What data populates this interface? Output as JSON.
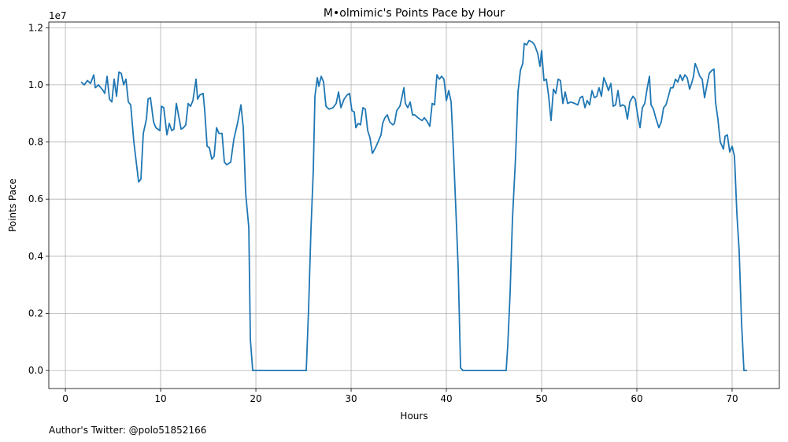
{
  "chart_data": {
    "type": "line",
    "title": "M•olmimic's Points Pace by Hour",
    "x_label": "Hours",
    "y_label": "Points Pace",
    "y_offset_label": "1e7",
    "footnote": "Author's Twitter: @polo51852166",
    "color": "#1f77b4",
    "grid": true,
    "xlim": [
      -1.74,
      74.96
    ],
    "ylim": [
      -0.063,
      1.22
    ],
    "xticks": [
      0,
      10,
      20,
      30,
      40,
      50,
      60,
      70
    ],
    "yticks": [
      {
        "value": 0,
        "label": "0.0"
      },
      0.2,
      0.4,
      0.6,
      0.8,
      {
        "value": 1,
        "label": "1.0"
      },
      1.2
    ],
    "x": [
      1.65,
      1.98,
      2.31,
      2.64,
      2.98,
      3.14,
      3.47,
      3.97,
      4.13,
      4.38,
      4.63,
      4.88,
      5.12,
      5.37,
      5.62,
      5.87,
      6.12,
      6.36,
      6.61,
      6.86,
      7.19,
      7.69,
      7.93,
      8.18,
      8.51,
      8.68,
      8.93,
      9.26,
      9.5,
      9.92,
      10.08,
      10.33,
      10.66,
      10.91,
      11.16,
      11.4,
      11.65,
      11.9,
      12.15,
      12.4,
      12.64,
      12.89,
      13.14,
      13.39,
      13.72,
      13.88,
      14.13,
      14.46,
      14.63,
      14.88,
      15.12,
      15.37,
      15.62,
      15.87,
      16.12,
      16.45,
      16.69,
      16.94,
      17.36,
      17.69,
      18.1,
      18.43,
      18.68,
      18.93,
      19.26,
      19.42,
      19.67,
      22,
      24,
      25.29,
      25.54,
      25.79,
      26.03,
      26.2,
      26.45,
      26.61,
      26.86,
      27.11,
      27.36,
      27.69,
      28.1,
      28.43,
      28.68,
      28.93,
      29.26,
      29.59,
      29.83,
      30.08,
      30.33,
      30.5,
      30.74,
      30.99,
      31.24,
      31.49,
      31.74,
      31.98,
      32.23,
      32.56,
      32.89,
      33.14,
      33.31,
      33.55,
      33.8,
      34.05,
      34.38,
      34.55,
      34.79,
      35.12,
      35.29,
      35.54,
      35.7,
      35.95,
      36.2,
      36.45,
      36.69,
      37.02,
      37.44,
      37.69,
      38.02,
      38.26,
      38.51,
      38.76,
      39.01,
      39.26,
      39.5,
      39.75,
      40,
      40.25,
      40.5,
      40.74,
      40.99,
      41.24,
      41.49,
      41.74,
      44,
      46.28,
      46.45,
      46.69,
      46.94,
      47.27,
      47.52,
      47.77,
      48.02,
      48.18,
      48.43,
      48.68,
      49.01,
      49.26,
      49.59,
      49.83,
      50,
      50.25,
      50.5,
      50.74,
      50.99,
      51.24,
      51.49,
      51.74,
      51.98,
      52.23,
      52.48,
      52.73,
      53.06,
      53.47,
      53.8,
      54.05,
      54.3,
      54.55,
      54.79,
      55.04,
      55.29,
      55.54,
      55.79,
      56.03,
      56.28,
      56.53,
      56.78,
      57.02,
      57.27,
      57.52,
      57.77,
      58.02,
      58.26,
      58.51,
      58.76,
      59.01,
      59.26,
      59.59,
      59.83,
      60.08,
      60.33,
      60.58,
      60.83,
      61.07,
      61.32,
      61.49,
      61.74,
      61.98,
      62.31,
      62.56,
      62.81,
      63.06,
      63.31,
      63.55,
      63.8,
      64.05,
      64.3,
      64.55,
      64.79,
      65.04,
      65.29,
      65.54,
      65.79,
      65.95,
      66.12,
      66.36,
      66.61,
      66.86,
      67.11,
      67.36,
      67.6,
      67.85,
      68.1,
      68.26,
      68.51,
      68.76,
      69.09,
      69.26,
      69.5,
      69.75,
      70,
      70.25,
      70.5,
      70.74,
      70.99,
      71.24,
      71.57
    ],
    "values": [
      1.01,
      1.0,
      1.015,
      1.005,
      1.035,
      0.99,
      1.0,
      0.98,
      0.97,
      1.03,
      0.95,
      0.94,
      1.02,
      0.96,
      1.045,
      1.04,
      1.0,
      1.02,
      0.94,
      0.93,
      0.8,
      0.66,
      0.67,
      0.83,
      0.88,
      0.95,
      0.955,
      0.87,
      0.85,
      0.84,
      0.925,
      0.92,
      0.825,
      0.865,
      0.84,
      0.845,
      0.935,
      0.89,
      0.845,
      0.85,
      0.86,
      0.935,
      0.925,
      0.945,
      1.02,
      0.95,
      0.965,
      0.97,
      0.91,
      0.785,
      0.78,
      0.74,
      0.75,
      0.85,
      0.83,
      0.83,
      0.73,
      0.72,
      0.73,
      0.81,
      0.87,
      0.93,
      0.85,
      0.62,
      0.5,
      0.11,
      0,
      0,
      0,
      0,
      0.22,
      0.5,
      0.7,
      0.96,
      1.025,
      0.995,
      1.03,
      1.01,
      0.925,
      0.915,
      0.92,
      0.935,
      0.975,
      0.92,
      0.95,
      0.965,
      0.97,
      0.91,
      0.905,
      0.85,
      0.865,
      0.86,
      0.92,
      0.915,
      0.84,
      0.815,
      0.76,
      0.78,
      0.805,
      0.825,
      0.865,
      0.885,
      0.895,
      0.87,
      0.86,
      0.865,
      0.91,
      0.925,
      0.95,
      0.99,
      0.935,
      0.92,
      0.94,
      0.895,
      0.895,
      0.885,
      0.875,
      0.885,
      0.87,
      0.855,
      0.935,
      0.93,
      1.035,
      1.02,
      1.03,
      1.02,
      0.945,
      0.98,
      0.94,
      0.77,
      0.57,
      0.36,
      0.01,
      0,
      0,
      0,
      0.09,
      0.27,
      0.53,
      0.75,
      0.975,
      1.05,
      1.075,
      1.145,
      1.14,
      1.155,
      1.15,
      1.14,
      1.11,
      1.065,
      1.12,
      1.015,
      1.02,
      0.96,
      0.875,
      0.985,
      0.97,
      1.02,
      1.015,
      0.935,
      0.975,
      0.935,
      0.94,
      0.935,
      0.93,
      0.955,
      0.96,
      0.92,
      0.945,
      0.93,
      0.98,
      0.955,
      0.96,
      0.99,
      0.96,
      1.025,
      1.005,
      0.98,
      1.005,
      0.925,
      0.93,
      0.98,
      0.925,
      0.93,
      0.925,
      0.88,
      0.94,
      0.96,
      0.95,
      0.895,
      0.85,
      0.92,
      0.935,
      0.985,
      1.03,
      0.93,
      0.915,
      0.885,
      0.85,
      0.87,
      0.92,
      0.93,
      0.96,
      0.99,
      0.99,
      1.02,
      1.01,
      1.035,
      1.015,
      1.035,
      1.025,
      0.985,
      1.01,
      1.03,
      1.075,
      1.055,
      1.03,
      1.02,
      0.955,
      1.0,
      1.04,
      1.05,
      1.055,
      0.94,
      0.88,
      0.8,
      0.775,
      0.82,
      0.825,
      0.765,
      0.785,
      0.75,
      0.55,
      0.42,
      0.17,
      0,
      0
    ]
  }
}
